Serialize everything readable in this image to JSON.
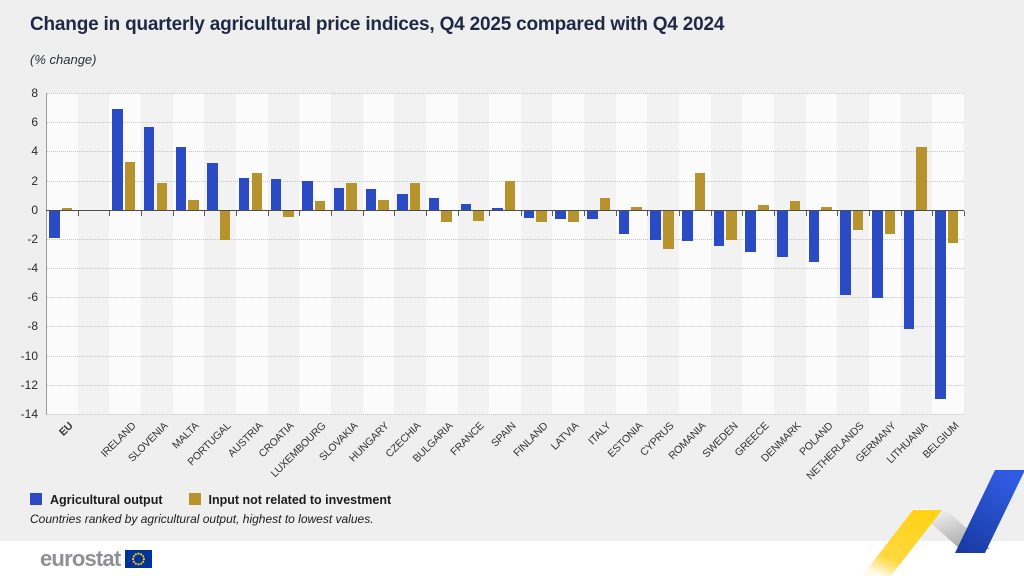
{
  "header": {
    "title": "Change in quarterly agricultural price indices, Q4 2025 compared with Q4 2024",
    "subtitle": "(% change)"
  },
  "chart_data": {
    "type": "bar",
    "categories": [
      "EU",
      "IRELAND",
      "SLOVENIA",
      "MALTA",
      "PORTUGAL",
      "AUSTRIA",
      "CROATIA",
      "LUXEMBOURG",
      "SLOVAKIA",
      "HUNGARY",
      "CZECHIA",
      "BULGARIA",
      "FRANCE",
      "SPAIN",
      "FINLAND",
      "LATVIA",
      "ITALY",
      "ESTONIA",
      "CYPRUS",
      "ROMANIA",
      "SWEDEN",
      "GREECE",
      "DENMARK",
      "POLAND",
      "NETHERLANDS",
      "GERMANY",
      "LITHUANIA",
      "BELGIUM"
    ],
    "series": [
      {
        "name": "Agricultural output",
        "color": "#2B4BC5",
        "values": [
          -1.9,
          6.9,
          5.7,
          4.3,
          3.2,
          2.2,
          2.1,
          2.0,
          1.5,
          1.4,
          1.1,
          0.8,
          0.4,
          0.1,
          -0.5,
          -0.6,
          -0.6,
          -1.6,
          -2.0,
          -2.1,
          -2.4,
          -2.8,
          -3.2,
          -3.5,
          -5.8,
          -6.0,
          -8.1,
          -12.9
        ]
      },
      {
        "name": "Input not related to investment",
        "color": "#B6932C",
        "values": [
          0.1,
          3.3,
          1.8,
          0.7,
          -2.0,
          2.5,
          -0.4,
          0.6,
          1.8,
          0.7,
          1.8,
          -0.8,
          -0.7,
          2.0,
          -0.8,
          -0.8,
          0.8,
          0.2,
          -2.6,
          2.5,
          -2.0,
          0.3,
          0.6,
          0.2,
          -1.3,
          -1.6,
          4.3,
          -2.2
        ]
      }
    ],
    "ylim": [
      -14,
      8
    ],
    "ytick_step": 2,
    "gap_after_first_category": true,
    "grid": "horizontal-dotted",
    "legend_position": "bottom-left"
  },
  "footnote": "Countries ranked by agricultural output, highest to lowest values.",
  "branding": {
    "logo_text": "eurostat"
  },
  "colors": {
    "background": "#EFEFEF",
    "stripe_gray": "#F2F2F2",
    "stripe_white": "#FBFBFB",
    "grid": "#C6C6C6",
    "zero_line": "#4D4D4D",
    "title_text": "#1F2945",
    "label_text": "#333333",
    "footer_bg": "#FFFFFF",
    "logo_gray": "#8E9093",
    "flag_blue": "#003399",
    "star_yellow": "#FFCC00",
    "ribbon_yellow": "#FFD214",
    "ribbon_blue": "#2F5BE0"
  }
}
